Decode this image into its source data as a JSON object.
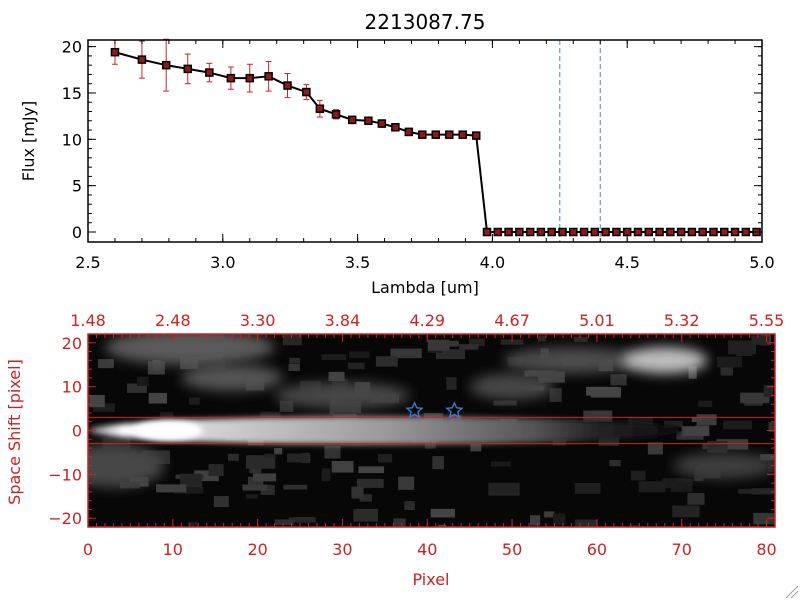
{
  "colors": {
    "axis_top": "#000000",
    "axis_bottom": "#cc2222",
    "errorbar": "#cc2222",
    "marker": "#000000",
    "marker_fill": "#8b1a1a",
    "vline": "#3a8fd6",
    "star": "#3a7fd6",
    "background": "#ffffff"
  },
  "chart_data": [
    {
      "type": "line",
      "title": "2213087.75",
      "xlabel": "Lambda [um]",
      "ylabel": "Flux [mJy]",
      "xlim": [
        2.5,
        5.0
      ],
      "ylim": [
        0,
        20.5
      ],
      "xticks": [
        2.5,
        3.0,
        3.5,
        4.0,
        4.5,
        5.0
      ],
      "xtick_labels": [
        "2.5",
        "3.0",
        "3.5",
        "4.0",
        "4.5",
        "5.0"
      ],
      "yticks": [
        0,
        5,
        10,
        15,
        20
      ],
      "ytick_labels": [
        "0",
        "5",
        "10",
        "15",
        "20"
      ],
      "grid": false,
      "series": [
        {
          "x": [
            2.6,
            2.7,
            2.79,
            2.87,
            2.95,
            3.03,
            3.1,
            3.17,
            3.24,
            3.31,
            3.36,
            3.42,
            3.48,
            3.54,
            3.59,
            3.64,
            3.69,
            3.74,
            3.79,
            3.84,
            3.89,
            3.94,
            3.98,
            4.02,
            4.06,
            4.1,
            4.14,
            4.18,
            4.22,
            4.26,
            4.3,
            4.34,
            4.38,
            4.42,
            4.46,
            4.5,
            4.54,
            4.58,
            4.62,
            4.66,
            4.7,
            4.74,
            4.78,
            4.82,
            4.86,
            4.9,
            4.94,
            4.98
          ],
          "y": [
            19.4,
            18.6,
            18.0,
            17.6,
            17.2,
            16.6,
            16.6,
            16.8,
            15.8,
            15.1,
            13.3,
            12.7,
            12.1,
            12.0,
            11.7,
            11.3,
            10.8,
            10.5,
            10.5,
            10.5,
            10.5,
            10.4,
            0,
            0,
            0,
            0,
            0,
            0,
            0,
            0,
            0,
            0,
            0,
            0,
            0,
            0,
            0,
            0,
            0,
            0,
            0,
            0,
            0,
            0,
            0,
            0,
            0,
            0
          ],
          "yerr": [
            1.3,
            2.0,
            2.8,
            1.6,
            1.0,
            1.2,
            1.5,
            1.6,
            1.3,
            0.8,
            0.9,
            0.5,
            0.4,
            0.4,
            0.4,
            0.4,
            0.4,
            0.3,
            0.3,
            0.3,
            0.3,
            0.3,
            0,
            0,
            0,
            0,
            0,
            0,
            0,
            0,
            0,
            0,
            0,
            0,
            0,
            0,
            0,
            0,
            0,
            0,
            0,
            0,
            0,
            0,
            0,
            0,
            0,
            0
          ]
        }
      ],
      "vlines": [
        4.25,
        4.4
      ],
      "hline": 0
    },
    {
      "type": "heatmap",
      "xlabel": "Pixel",
      "ylabel": "Space Shift [pixel]",
      "xlim": [
        0,
        81
      ],
      "ylim": [
        -22,
        22
      ],
      "xticks": [
        0,
        10,
        20,
        30,
        40,
        50,
        60,
        70,
        80
      ],
      "xtick_labels": [
        "0",
        "10",
        "20",
        "30",
        "40",
        "50",
        "60",
        "70",
        "80"
      ],
      "yticks": [
        -20,
        -10,
        0,
        10,
        20
      ],
      "ytick_labels": [
        "−20",
        "−10",
        "0",
        "10",
        "20"
      ],
      "top_axis_labels": [
        "1.48",
        "2.48",
        "3.30",
        "3.84",
        "4.29",
        "4.67",
        "5.01",
        "5.32",
        "5.55"
      ],
      "aperture_lines": [
        3,
        -3
      ],
      "stars": [
        {
          "x": 38.5,
          "y": 4.5
        },
        {
          "x": 43.2,
          "y": 4.5
        }
      ],
      "trace_center": 0,
      "bright_spot": {
        "x": 9.5,
        "y": 0
      },
      "secondary_blob": {
        "x": 68,
        "y": 16
      }
    }
  ]
}
